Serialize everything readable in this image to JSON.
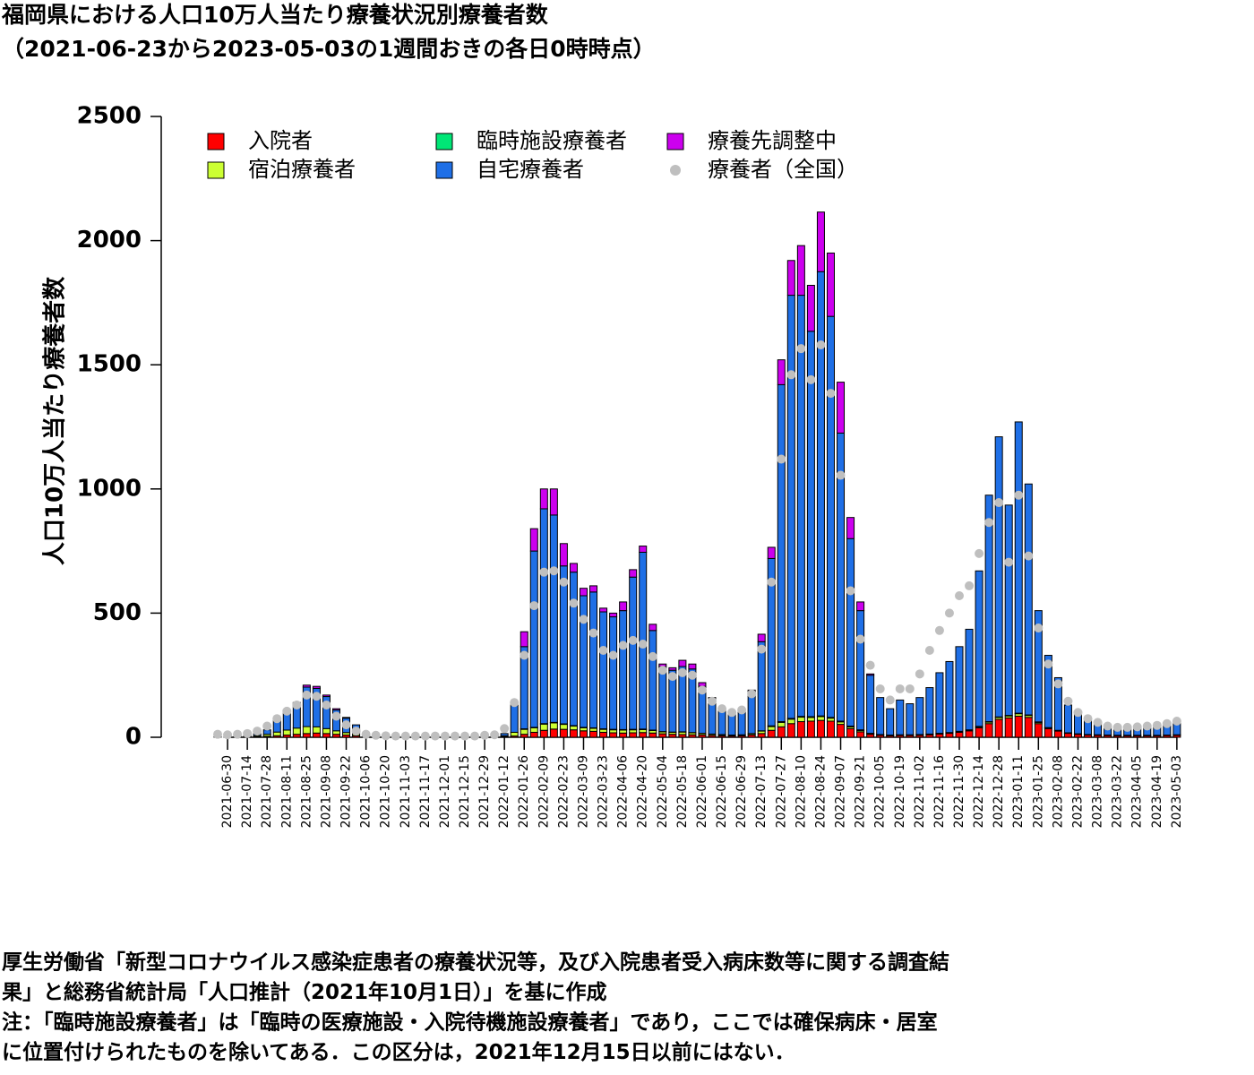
{
  "chart_data": {
    "type": "bar",
    "stacked": true,
    "title": "福岡県における人口10万人当たり療養状況別療養者数",
    "subtitle": "（2021-06-23から2023-05-03の1週間おきの各日0時時点）",
    "ylabel": "人口10万人当たり療養者数",
    "ylim": [
      0,
      2500
    ],
    "yticks": [
      0,
      500,
      1000,
      1500,
      2000,
      2500
    ],
    "categories": [
      null,
      "2021-06-30",
      null,
      "2021-07-14",
      null,
      "2021-07-28",
      null,
      "2021-08-11",
      null,
      "2021-08-25",
      null,
      "2021-09-08",
      null,
      "2021-09-22",
      null,
      "2021-10-06",
      null,
      "2021-10-20",
      null,
      "2021-11-03",
      null,
      "2021-11-17",
      null,
      "2021-12-01",
      null,
      "2021-12-15",
      null,
      "2021-12-29",
      null,
      "2022-01-12",
      null,
      "2022-01-26",
      null,
      "2022-02-09",
      null,
      "2022-02-23",
      null,
      "2022-03-09",
      null,
      "2022-03-23",
      null,
      "2022-04-06",
      null,
      "2022-04-20",
      null,
      "2022-05-04",
      null,
      "2022-05-18",
      null,
      "2022-06-01",
      null,
      "2022-06-15",
      null,
      "2022-06-29",
      null,
      "2022-07-13",
      null,
      "2022-07-27",
      null,
      "2022-08-10",
      null,
      "2022-08-24",
      null,
      "2022-09-07",
      null,
      "2022-09-21",
      null,
      "2022-10-05",
      null,
      "2022-10-19",
      null,
      "2022-11-02",
      null,
      "2022-11-16",
      null,
      "2022-11-30",
      null,
      "2022-12-14",
      null,
      "2022-12-28",
      null,
      "2023-01-11",
      null,
      "2023-01-25",
      null,
      "2023-02-08",
      null,
      "2023-02-22",
      null,
      "2023-03-08",
      null,
      "2023-03-22",
      null,
      "2023-04-05",
      null,
      "2023-04-19",
      null,
      "2023-05-03"
    ],
    "series": [
      {
        "name": "入院者",
        "color": "#ff0000",
        "values": [
          2,
          2,
          2,
          2,
          3,
          4,
          6,
          9,
          12,
          15,
          17,
          15,
          12,
          9,
          6,
          3,
          1,
          1,
          1,
          1,
          1,
          1,
          1,
          1,
          1,
          1,
          1,
          1,
          1,
          2,
          5,
          12,
          20,
          28,
          33,
          32,
          30,
          26,
          24,
          20,
          18,
          17,
          18,
          19,
          17,
          14,
          12,
          11,
          10,
          9,
          7,
          6,
          5,
          6,
          9,
          15,
          28,
          42,
          55,
          63,
          65,
          68,
          65,
          52,
          35,
          22,
          12,
          8,
          6,
          7,
          7,
          8,
          10,
          13,
          16,
          20,
          26,
          38,
          55,
          72,
          78,
          85,
          80,
          55,
          35,
          25,
          16,
          12,
          9,
          8,
          7,
          6,
          6,
          6,
          6,
          6,
          7,
          8
        ]
      },
      {
        "name": "宿泊療養者",
        "color": "#ccff33",
        "values": [
          2,
          2,
          2,
          3,
          4,
          8,
          15,
          20,
          25,
          28,
          25,
          20,
          14,
          10,
          6,
          3,
          1,
          1,
          1,
          1,
          1,
          1,
          1,
          1,
          1,
          1,
          1,
          1,
          1,
          4,
          15,
          20,
          18,
          25,
          25,
          20,
          15,
          12,
          12,
          12,
          12,
          12,
          12,
          12,
          10,
          8,
          8,
          10,
          8,
          6,
          5,
          4,
          3,
          3,
          5,
          10,
          15,
          18,
          18,
          18,
          15,
          15,
          12,
          10,
          7,
          5,
          3,
          2,
          2,
          2,
          2,
          2,
          2,
          2,
          2,
          3,
          3,
          4,
          6,
          8,
          8,
          10,
          8,
          5,
          3,
          2,
          1,
          1,
          1,
          1,
          1,
          1,
          1,
          1,
          1,
          1,
          1,
          1
        ]
      },
      {
        "name": "臨時施設療養者",
        "color": "#00e676",
        "values": [
          null,
          null,
          null,
          null,
          null,
          null,
          null,
          null,
          null,
          null,
          null,
          null,
          null,
          null,
          null,
          null,
          null,
          null,
          null,
          null,
          null,
          null,
          null,
          null,
          null,
          null,
          0,
          0,
          0,
          0,
          0,
          2,
          2,
          2,
          2,
          2,
          2,
          2,
          2,
          2,
          2,
          2,
          2,
          2,
          2,
          1,
          1,
          1,
          1,
          1,
          1,
          1,
          1,
          1,
          1,
          1,
          3,
          3,
          3,
          3,
          3,
          3,
          3,
          3,
          3,
          3,
          1,
          1,
          1,
          1,
          1,
          1,
          1,
          1,
          1,
          1,
          1,
          2,
          2,
          2,
          2,
          2,
          2,
          2,
          1,
          1,
          1,
          1,
          1,
          1,
          1,
          1,
          1,
          1,
          1,
          1,
          1,
          1
        ]
      },
      {
        "name": "自宅療養者",
        "color": "#1f6fe6",
        "values": [
          6,
          4,
          4,
          5,
          8,
          18,
          49,
          81,
          98,
          159,
          155,
          129,
          84,
          58,
          38,
          9,
          3,
          3,
          3,
          3,
          3,
          3,
          3,
          3,
          3,
          3,
          3,
          3,
          3,
          9,
          110,
          331,
          710,
          865,
          835,
          636,
          618,
          530,
          547,
          471,
          453,
          479,
          613,
          712,
          401,
          262,
          249,
          263,
          256,
          189,
          137,
          99,
          91,
          100,
          170,
          359,
          674,
          1357,
          1704,
          1696,
          1552,
          1789,
          1615,
          1160,
          755,
          480,
          234,
          149,
          106,
          140,
          125,
          149,
          187,
          244,
          286,
          341,
          405,
          626,
          912,
          1128,
          847,
          1173,
          930,
          448,
          291,
          212,
          112,
          81,
          59,
          45,
          36,
          32,
          32,
          32,
          37,
          37,
          41,
          50
        ]
      },
      {
        "name": "療養先調整中",
        "color": "#cc00ee",
        "values": [
          0,
          0,
          0,
          0,
          0,
          0,
          0,
          0,
          5,
          8,
          8,
          6,
          5,
          3,
          0,
          0,
          0,
          0,
          0,
          0,
          0,
          0,
          0,
          0,
          0,
          0,
          0,
          0,
          0,
          0,
          0,
          60,
          90,
          80,
          105,
          90,
          35,
          30,
          25,
          15,
          15,
          35,
          30,
          25,
          25,
          10,
          10,
          25,
          20,
          15,
          10,
          0,
          0,
          0,
          5,
          30,
          45,
          100,
          140,
          200,
          185,
          240,
          255,
          205,
          85,
          35,
          5,
          0,
          0,
          0,
          0,
          0,
          0,
          0,
          0,
          0,
          0,
          0,
          0,
          0,
          0,
          0,
          0,
          0,
          0,
          0,
          0,
          0,
          0,
          0,
          0,
          0,
          0,
          0,
          0,
          0,
          0,
          0
        ]
      },
      {
        "name": "療養者（全国）",
        "type": "scatter",
        "color": "#bfbfbf",
        "values": [
          12,
          10,
          12,
          15,
          25,
          45,
          75,
          105,
          130,
          170,
          165,
          130,
          85,
          50,
          25,
          12,
          8,
          6,
          5,
          5,
          5,
          5,
          5,
          5,
          5,
          5,
          5,
          8,
          10,
          35,
          140,
          330,
          530,
          665,
          670,
          625,
          540,
          475,
          420,
          350,
          330,
          370,
          390,
          375,
          325,
          270,
          245,
          260,
          250,
          190,
          145,
          115,
          100,
          110,
          175,
          355,
          625,
          1120,
          1460,
          1565,
          1440,
          1580,
          1385,
          1055,
          590,
          395,
          290,
          195,
          150,
          195,
          195,
          255,
          350,
          430,
          500,
          570,
          610,
          740,
          865,
          945,
          705,
          975,
          730,
          440,
          295,
          215,
          145,
          100,
          75,
          60,
          45,
          40,
          40,
          42,
          45,
          48,
          55,
          65
        ]
      }
    ]
  },
  "notes": [
    "厚生労働省「新型コロナウイルス感染症患者の療養状況等，及び入院患者受入病床数等に関する調査結",
    "果」と総務省統計局「人口推計（2021年10月1日）」を基に作成",
    "注：「臨時施設療養者」は「臨時の医療施設・入院待機施設療養者」であり，ここでは確保病床・居室",
    "に位置付けられたものを除いてある．この区分は，2021年12月15日以前にはない．"
  ]
}
